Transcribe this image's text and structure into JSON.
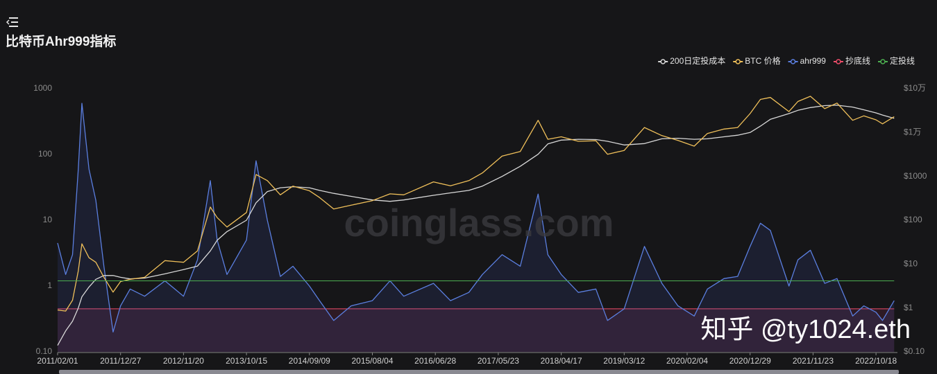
{
  "chart_data": {
    "type": "line",
    "title": "比特币Ahr999指标",
    "annotations": [
      "coinglass.com",
      "知乎 @ty1024.eth"
    ],
    "legend": "top-right",
    "log_scale": true,
    "grid": false,
    "x": [
      "2011/02/01",
      "2011/03/15",
      "2011/04/20",
      "2011/05/20",
      "2011/06/08",
      "2011/07/15",
      "2011/08/20",
      "2011/10/01",
      "2011/11/18",
      "2011/12/27",
      "2012/02/15",
      "2012/05/01",
      "2012/08/15",
      "2012/11/20",
      "2013/02/01",
      "2013/04/09",
      "2013/05/15",
      "2013/07/05",
      "2013/10/15",
      "2013/12/04",
      "2014/02/01",
      "2014/04/10",
      "2014/06/15",
      "2014/09/09",
      "2014/11/01",
      "2015/01/14",
      "2015/04/15",
      "2015/08/04",
      "2015/11/04",
      "2016/01/15",
      "2016/06/18",
      "2016/09/15",
      "2016/12/20",
      "2017/03/01",
      "2017/06/12",
      "2017/09/15",
      "2017/12/17",
      "2018/02/06",
      "2018/04/17",
      "2018/07/15",
      "2018/10/15",
      "2018/12/15",
      "2019/03/12",
      "2019/06/26",
      "2019/09/25",
      "2019/12/18",
      "2020/03/12",
      "2020/05/20",
      "2020/08/15",
      "2020/10/25",
      "2020/12/29",
      "2021/02/21",
      "2021/04/14",
      "2021/07/20",
      "2021/09/05",
      "2021/11/09",
      "2022/01/23",
      "2022/03/28",
      "2022/06/18",
      "2022/08/15",
      "2022/10/18",
      "2022/11/21",
      "2023/01/21"
    ],
    "xlim": [
      "2011/02/01",
      "2023/02/07"
    ],
    "xticks": [
      "2011/02/01",
      "2011/12/27",
      "2012/11/20",
      "2013/10/15",
      "2014/09/09",
      "2015/08/04",
      "2016/06/28",
      "2017/05/23",
      "2018/04/17",
      "2019/03/12",
      "2020/02/04",
      "2020/12/29",
      "2021/11/23",
      "2022/10/18"
    ],
    "ylim": [
      0.1,
      1000
    ],
    "yticks": [
      {
        "value": 0.1,
        "label": "0.10"
      },
      1,
      10,
      100,
      1000
    ],
    "y2lim": [
      0.1,
      100000
    ],
    "y2ticks": [
      {
        "value": 0.1,
        "label": "$0.10"
      },
      {
        "value": 1,
        "label": "$1"
      },
      {
        "value": 10,
        "label": "$10"
      },
      {
        "value": 100,
        "label": "$100"
      },
      {
        "value": 1000,
        "label": "$1000"
      },
      {
        "value": 10000,
        "label": "$1万"
      },
      {
        "value": 100000,
        "label": "$10万"
      }
    ],
    "series": [
      {
        "name": "200日定投成本",
        "color": "#d9d9d9",
        "axis": "y2",
        "values": [
          0.14,
          0.3,
          0.5,
          1.0,
          1.8,
          3,
          4.5,
          5.5,
          5.5,
          5.0,
          4.6,
          4.8,
          6,
          7.5,
          9,
          20,
          35,
          55,
          100,
          250,
          450,
          550,
          580,
          550,
          480,
          410,
          350,
          290,
          270,
          290,
          370,
          420,
          480,
          600,
          1000,
          1700,
          3200,
          5500,
          6700,
          7000,
          6900,
          6300,
          5200,
          5600,
          7200,
          7400,
          7000,
          7200,
          8000,
          8700,
          10000,
          14000,
          20000,
          27000,
          32000,
          37000,
          41000,
          42000,
          38000,
          33000,
          28000,
          25000,
          21000
        ]
      },
      {
        "name": "BTC 价格",
        "color": "#f0c05a",
        "axis": "y2",
        "values": [
          0.9,
          0.85,
          1.5,
          7,
          29,
          14,
          11,
          5,
          2.3,
          4,
          4.5,
          5,
          12,
          11,
          20,
          200,
          115,
          70,
          150,
          1100,
          800,
          380,
          600,
          470,
          330,
          180,
          220,
          280,
          400,
          380,
          750,
          610,
          800,
          1200,
          2900,
          3700,
          19000,
          7000,
          8000,
          6300,
          6500,
          3200,
          3900,
          13000,
          8500,
          6600,
          4900,
          9500,
          12000,
          13000,
          27000,
          57000,
          63000,
          30000,
          51000,
          67000,
          35000,
          47000,
          19000,
          24000,
          19500,
          15800,
          23000
        ]
      },
      {
        "name": "ahr999",
        "color": "#5b7fe0",
        "values": [
          4.5,
          1.5,
          3,
          60,
          600,
          60,
          20,
          2,
          0.2,
          0.5,
          0.9,
          0.7,
          1.2,
          0.7,
          2.5,
          40,
          5,
          1.5,
          5,
          80,
          10,
          1.4,
          2.0,
          1.0,
          0.6,
          0.3,
          0.5,
          0.6,
          1.2,
          0.7,
          1.1,
          0.6,
          0.8,
          1.5,
          3,
          2,
          25,
          3,
          1.5,
          0.8,
          0.9,
          0.3,
          0.45,
          4,
          1.1,
          0.5,
          0.35,
          0.9,
          1.3,
          1.4,
          4,
          9,
          7,
          1.0,
          2.5,
          3.5,
          1.1,
          1.3,
          0.35,
          0.5,
          0.4,
          0.3,
          0.6
        ]
      },
      {
        "name": "抄底线",
        "color": "#ef4d6a",
        "values": [
          0.45,
          0.45,
          0.45,
          0.45,
          0.45,
          0.45,
          0.45,
          0.45,
          0.45,
          0.45,
          0.45,
          0.45,
          0.45,
          0.45,
          0.45,
          0.45,
          0.45,
          0.45,
          0.45,
          0.45,
          0.45,
          0.45,
          0.45,
          0.45,
          0.45,
          0.45,
          0.45,
          0.45,
          0.45,
          0.45,
          0.45,
          0.45,
          0.45,
          0.45,
          0.45,
          0.45,
          0.45,
          0.45,
          0.45,
          0.45,
          0.45,
          0.45,
          0.45,
          0.45,
          0.45,
          0.45,
          0.45,
          0.45,
          0.45,
          0.45,
          0.45,
          0.45,
          0.45,
          0.45,
          0.45,
          0.45,
          0.45,
          0.45,
          0.45,
          0.45,
          0.45,
          0.45,
          0.45
        ]
      },
      {
        "name": "定投线",
        "color": "#4caf50",
        "values": [
          1.2,
          1.2,
          1.2,
          1.2,
          1.2,
          1.2,
          1.2,
          1.2,
          1.2,
          1.2,
          1.2,
          1.2,
          1.2,
          1.2,
          1.2,
          1.2,
          1.2,
          1.2,
          1.2,
          1.2,
          1.2,
          1.2,
          1.2,
          1.2,
          1.2,
          1.2,
          1.2,
          1.2,
          1.2,
          1.2,
          1.2,
          1.2,
          1.2,
          1.2,
          1.2,
          1.2,
          1.2,
          1.2,
          1.2,
          1.2,
          1.2,
          1.2,
          1.2,
          1.2,
          1.2,
          1.2,
          1.2,
          1.2,
          1.2,
          1.2,
          1.2,
          1.2,
          1.2,
          1.2,
          1.2,
          1.2,
          1.2,
          1.2,
          1.2,
          1.2,
          1.2,
          1.2,
          1.2
        ]
      }
    ]
  }
}
